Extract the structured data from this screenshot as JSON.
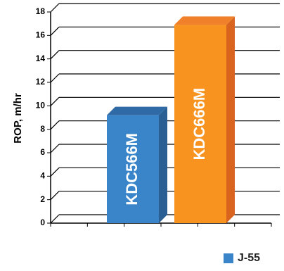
{
  "chart_data": {
    "type": "bar",
    "title": "",
    "xlabel": "",
    "ylabel": "ROP, m/hr",
    "ylim": [
      0,
      18
    ],
    "yticks": [
      0,
      2,
      4,
      6,
      8,
      10,
      12,
      14,
      16,
      18
    ],
    "grid": true,
    "legend_position": "bottom-right",
    "categories": [
      "KDC566M",
      "KDC666M"
    ],
    "series": [
      {
        "name": "J-55",
        "values": [
          9.2,
          16.9
        ]
      }
    ],
    "colors": {
      "bar_front": [
        "#3a84c9",
        "#f7931e"
      ],
      "bar_side": [
        "#2a5f93",
        "#d8641f"
      ],
      "bar_top": [
        "#2f6aa6",
        "#f0802a"
      ],
      "legend_swatch": "#3a84c9"
    }
  }
}
